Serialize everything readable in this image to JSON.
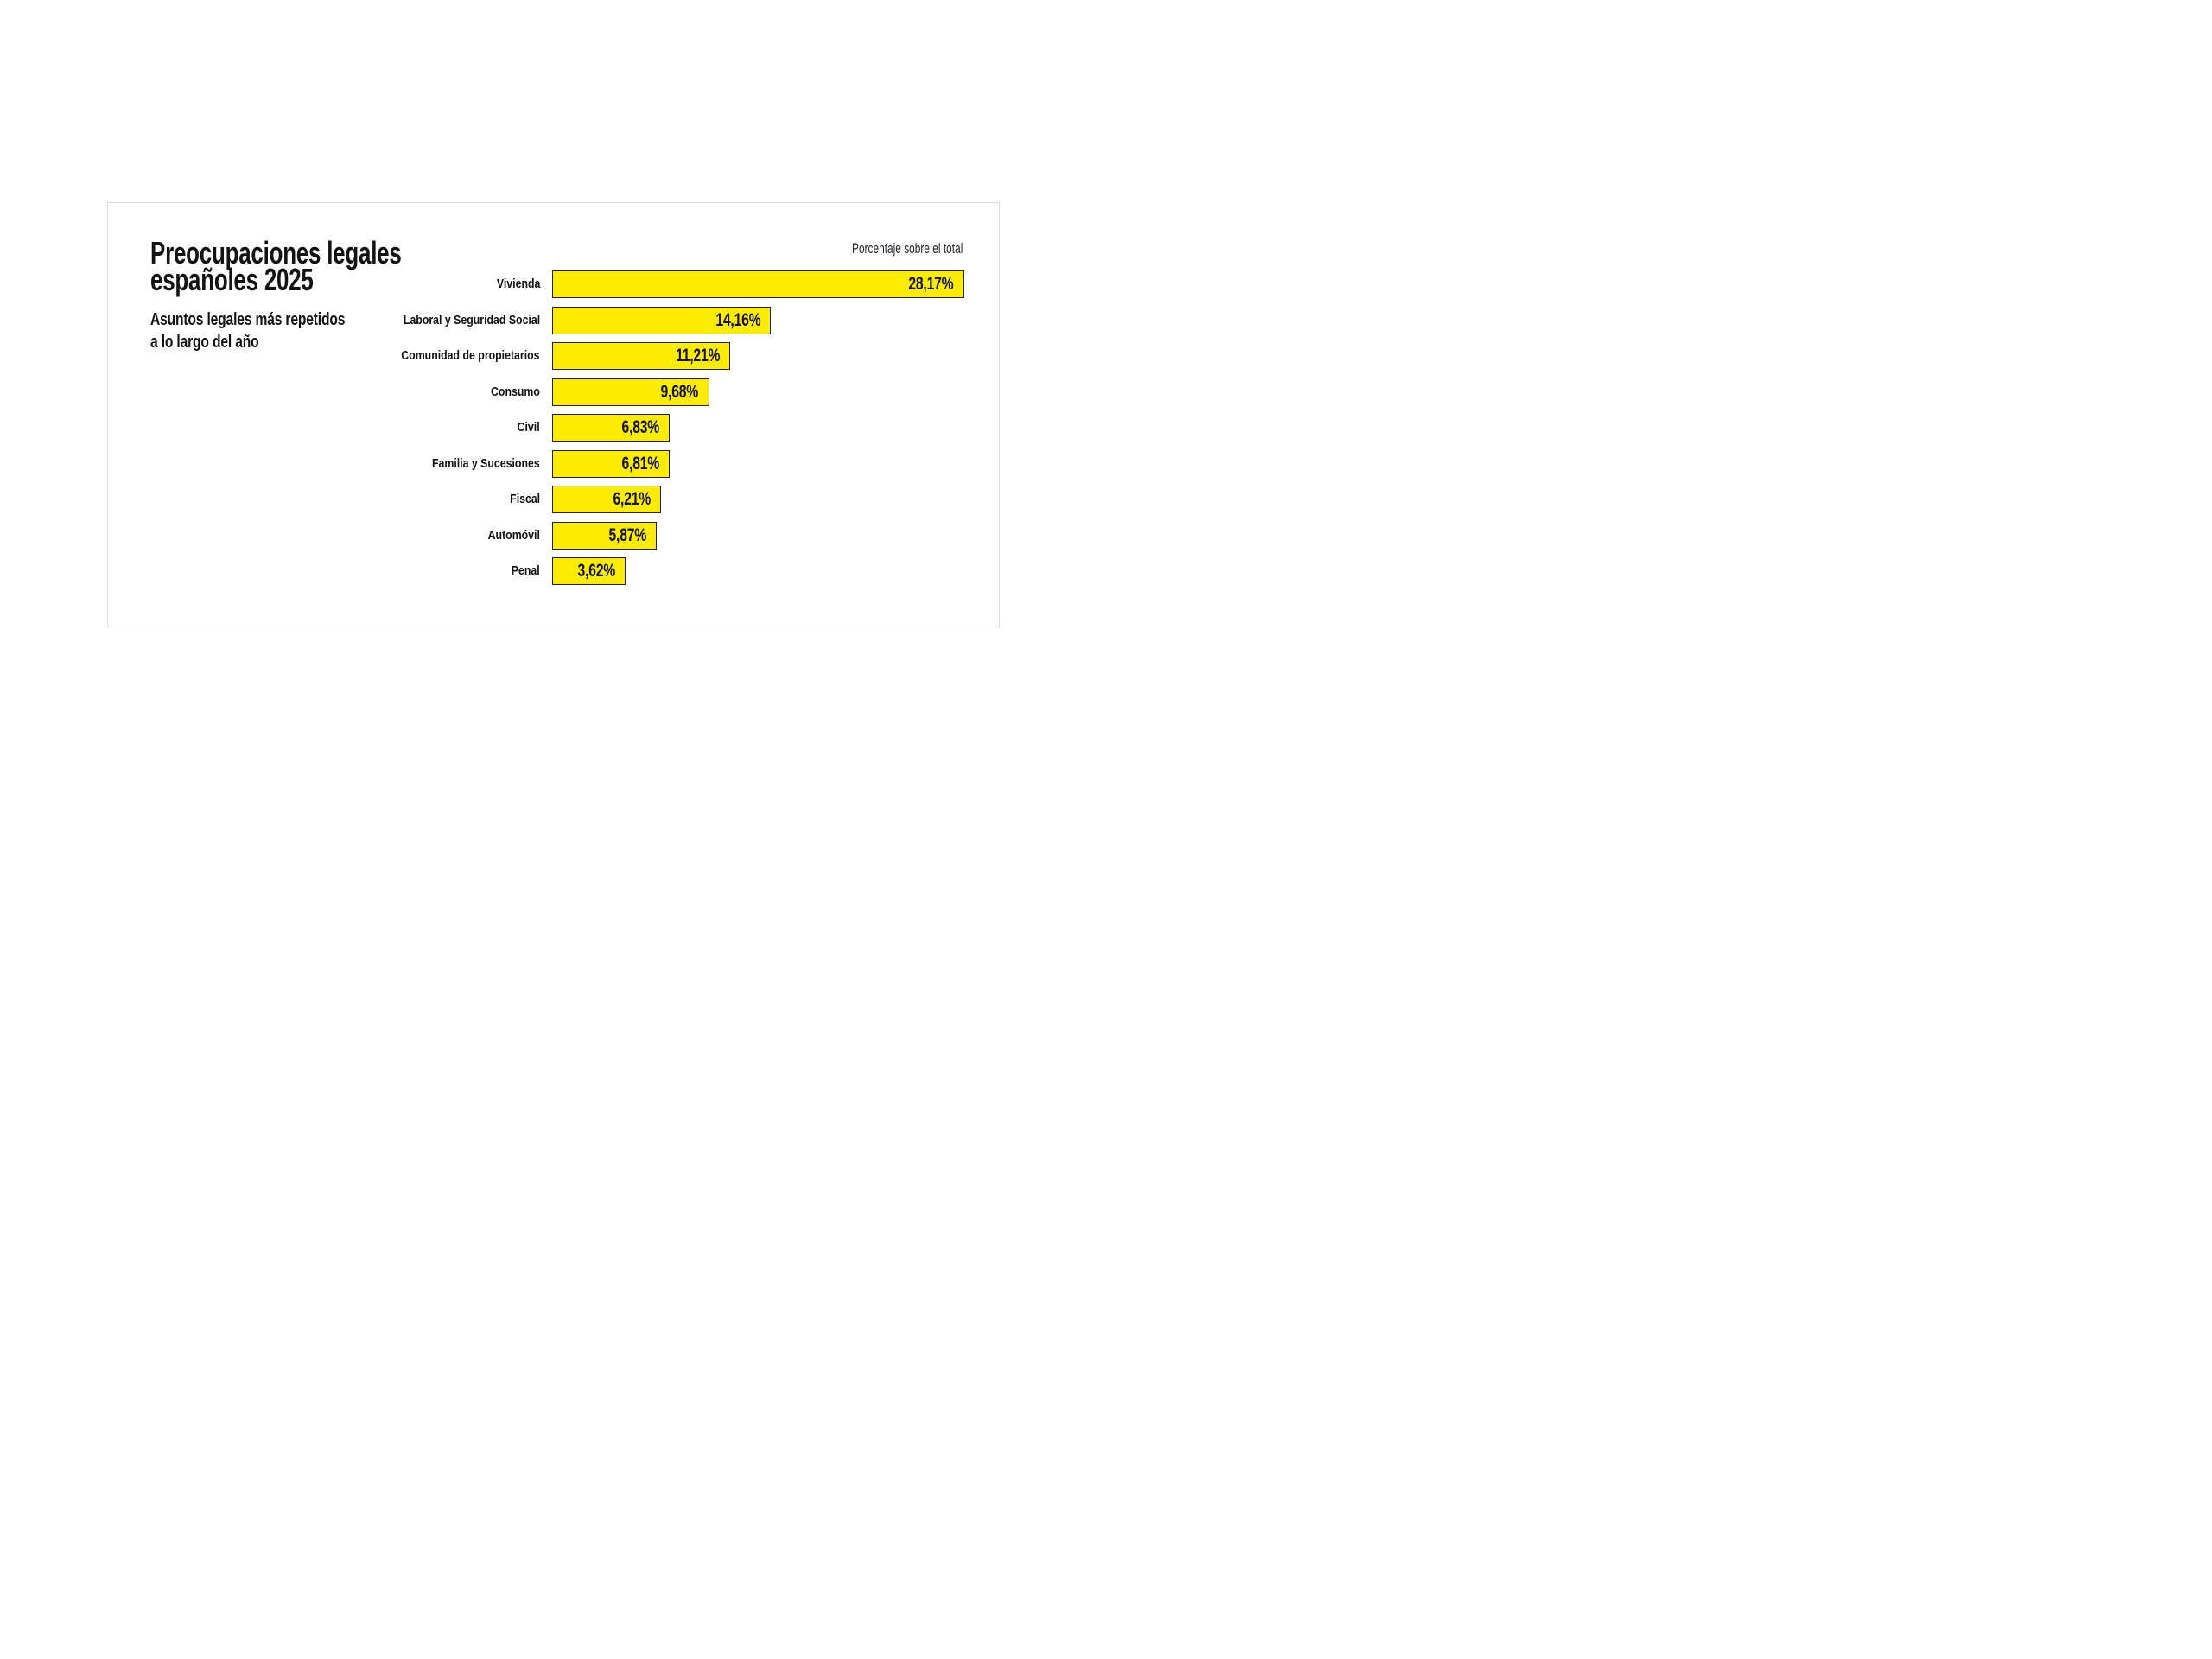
{
  "card": {
    "title_lines": [
      "Preocupaciones legales",
      "españoles 2025"
    ],
    "subtitle_lines": [
      "Asuntos legales más repetidos",
      "a lo largo del año"
    ],
    "caption": "Porcentaje sobre el total"
  },
  "chart_data": {
    "type": "bar",
    "orientation": "horizontal",
    "title": "Preocupaciones legales españoles 2025",
    "subtitle": "Asuntos legales más repetidos a lo largo del año",
    "value_axis_label": "Porcentaje sobre el total",
    "unit": "%",
    "decimal_separator": ",",
    "categories": [
      "Vivienda",
      "Laboral y Seguridad Social",
      "Comunidad de propietarios",
      "Consumo",
      "Civil",
      "Familia y Sucesiones",
      "Fiscal",
      "Automóvil",
      "Penal"
    ],
    "values": [
      28.17,
      14.16,
      11.21,
      9.68,
      6.83,
      6.81,
      6.21,
      5.87,
      3.62
    ],
    "value_labels": [
      "28,17%",
      "14,16%",
      "11,21%",
      "9,68%",
      "6,83%",
      "6,81%",
      "6,21%",
      "5,87%",
      "3,62%"
    ],
    "bar_color": "#FCEC00",
    "bar_border_color": "#1d1d1b",
    "label_color": "#121212",
    "legend": "none",
    "grid": "off"
  }
}
